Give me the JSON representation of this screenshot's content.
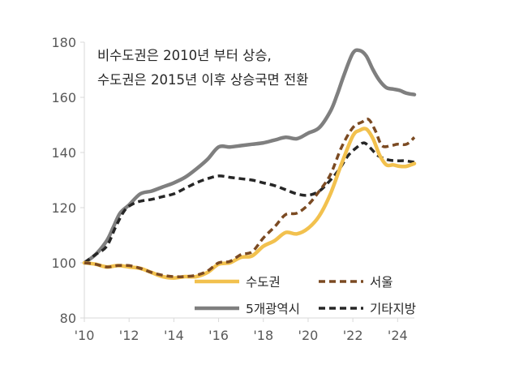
{
  "chart_data": {
    "type": "line",
    "title": "",
    "xlabel": "",
    "ylabel": "",
    "xlim": [
      2010,
      2024.75
    ],
    "ylim": [
      80,
      180
    ],
    "grid": false,
    "x_ticks": [
      2010,
      2012,
      2014,
      2016,
      2018,
      2020,
      2022,
      2024
    ],
    "x_tick_labels": [
      "'10",
      "'12",
      "'14",
      "'16",
      "'18",
      "'20",
      "'22",
      "'24"
    ],
    "y_ticks": [
      80,
      100,
      120,
      140,
      160,
      180
    ],
    "y_tick_labels": [
      "80",
      "100",
      "120",
      "140",
      "160",
      "180"
    ],
    "annotation": [
      "비수도권은 2010년 부터 상승,",
      "수도권은 2015년 이후 상승국면 전환"
    ],
    "legend_position": "bottom-right",
    "series": [
      {
        "name": "수도권",
        "color": "#f2c14e",
        "dash": "solid",
        "points": [
          [
            2010,
            100
          ],
          [
            2010.5,
            99.5
          ],
          [
            2011,
            98.5
          ],
          [
            2011.5,
            99
          ],
          [
            2012,
            98.5
          ],
          [
            2012.5,
            98
          ],
          [
            2013,
            96.5
          ],
          [
            2013.5,
            95
          ],
          [
            2014,
            94.5
          ],
          [
            2014.5,
            95
          ],
          [
            2015,
            95
          ],
          [
            2015.5,
            96.5
          ],
          [
            2016,
            99.5
          ],
          [
            2016.5,
            100
          ],
          [
            2017,
            102
          ],
          [
            2017.5,
            102.5
          ],
          [
            2018,
            106
          ],
          [
            2018.5,
            108
          ],
          [
            2019,
            111
          ],
          [
            2019.5,
            110.5
          ],
          [
            2020,
            112.5
          ],
          [
            2020.5,
            117
          ],
          [
            2021,
            125
          ],
          [
            2021.5,
            136
          ],
          [
            2022,
            146
          ],
          [
            2022.3,
            148
          ],
          [
            2022.6,
            148.5
          ],
          [
            2022.9,
            145
          ],
          [
            2023.2,
            139
          ],
          [
            2023.5,
            135.5
          ],
          [
            2023.8,
            135.5
          ],
          [
            2024.1,
            135
          ],
          [
            2024.4,
            135
          ],
          [
            2024.75,
            136
          ]
        ]
      },
      {
        "name": "서울",
        "color": "#7b4a22",
        "dash": "dashed",
        "points": [
          [
            2010,
            100
          ],
          [
            2010.5,
            99.5
          ],
          [
            2011,
            98.5
          ],
          [
            2011.5,
            99
          ],
          [
            2012,
            99
          ],
          [
            2012.5,
            98
          ],
          [
            2013,
            96.5
          ],
          [
            2013.5,
            95.5
          ],
          [
            2014,
            95
          ],
          [
            2014.5,
            95
          ],
          [
            2015,
            95.5
          ],
          [
            2015.5,
            97
          ],
          [
            2016,
            100
          ],
          [
            2016.5,
            100.5
          ],
          [
            2017,
            103
          ],
          [
            2017.5,
            104
          ],
          [
            2018,
            109
          ],
          [
            2018.5,
            113
          ],
          [
            2019,
            117.5
          ],
          [
            2019.5,
            118
          ],
          [
            2020,
            121
          ],
          [
            2020.5,
            126
          ],
          [
            2021,
            132
          ],
          [
            2021.5,
            142
          ],
          [
            2022,
            149
          ],
          [
            2022.4,
            151
          ],
          [
            2022.7,
            152
          ],
          [
            2023,
            148
          ],
          [
            2023.3,
            142.5
          ],
          [
            2023.7,
            142.5
          ],
          [
            2024,
            143
          ],
          [
            2024.4,
            143
          ],
          [
            2024.75,
            145.5
          ]
        ]
      },
      {
        "name": "5개광역시",
        "color": "#7f7f7f",
        "dash": "solid",
        "points": [
          [
            2010,
            100
          ],
          [
            2010.5,
            103
          ],
          [
            2011,
            108
          ],
          [
            2011.3,
            113
          ],
          [
            2011.6,
            118
          ],
          [
            2012,
            121
          ],
          [
            2012.5,
            125
          ],
          [
            2013,
            126
          ],
          [
            2013.5,
            127.5
          ],
          [
            2014,
            129
          ],
          [
            2014.5,
            131
          ],
          [
            2015,
            134
          ],
          [
            2015.5,
            137.5
          ],
          [
            2016,
            142
          ],
          [
            2016.5,
            142
          ],
          [
            2017,
            142.5
          ],
          [
            2017.5,
            143
          ],
          [
            2018,
            143.5
          ],
          [
            2018.5,
            144.5
          ],
          [
            2019,
            145.5
          ],
          [
            2019.5,
            145
          ],
          [
            2020,
            147
          ],
          [
            2020.5,
            149
          ],
          [
            2021,
            155
          ],
          [
            2021.3,
            161
          ],
          [
            2021.6,
            168
          ],
          [
            2022,
            176
          ],
          [
            2022.3,
            177
          ],
          [
            2022.6,
            175
          ],
          [
            2022.9,
            170
          ],
          [
            2023.2,
            166
          ],
          [
            2023.5,
            163.5
          ],
          [
            2023.8,
            163
          ],
          [
            2024.1,
            162.5
          ],
          [
            2024.4,
            161.5
          ],
          [
            2024.75,
            161
          ]
        ]
      },
      {
        "name": "기타지방",
        "color": "#262626",
        "dash": "dashed",
        "points": [
          [
            2010,
            100
          ],
          [
            2010.5,
            103
          ],
          [
            2011,
            106
          ],
          [
            2011.4,
            113
          ],
          [
            2011.8,
            119
          ],
          [
            2012.2,
            121.5
          ],
          [
            2012.6,
            122.5
          ],
          [
            2013,
            123
          ],
          [
            2013.5,
            124
          ],
          [
            2014,
            125
          ],
          [
            2014.5,
            127
          ],
          [
            2015,
            129
          ],
          [
            2015.5,
            130.5
          ],
          [
            2016,
            131.5
          ],
          [
            2016.5,
            131
          ],
          [
            2017,
            130.5
          ],
          [
            2017.5,
            130
          ],
          [
            2018,
            129
          ],
          [
            2018.5,
            128
          ],
          [
            2019,
            126.5
          ],
          [
            2019.5,
            125
          ],
          [
            2020,
            124.5
          ],
          [
            2020.5,
            126
          ],
          [
            2021,
            130
          ],
          [
            2021.4,
            134
          ],
          [
            2021.8,
            139
          ],
          [
            2022.2,
            142
          ],
          [
            2022.5,
            143.5
          ],
          [
            2022.8,
            141.5
          ],
          [
            2023.1,
            139
          ],
          [
            2023.5,
            137.5
          ],
          [
            2023.9,
            137
          ],
          [
            2024.3,
            137
          ],
          [
            2024.75,
            136.5
          ]
        ]
      }
    ]
  }
}
